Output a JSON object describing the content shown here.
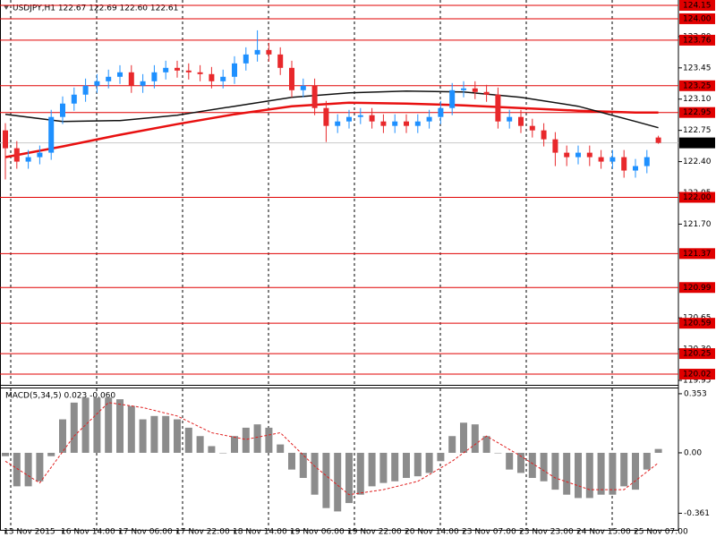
{
  "chart_data": [
    {
      "type": "candlestick",
      "title": "USDJPY,H1  122.67 122.69 122.60 122.61",
      "categories": [
        "13 Nov 2015",
        null,
        null,
        null,
        null,
        "16 Nov 14:00",
        null,
        null,
        null,
        null,
        "17 Nov 06:00",
        null,
        null,
        null,
        null,
        "17 Nov 22:00",
        null,
        null,
        null,
        null,
        "18 Nov 14:00",
        null,
        null,
        null,
        null,
        "19 Nov 06:00",
        null,
        null,
        null,
        null,
        "19 Nov 22:00",
        null,
        null,
        null,
        null,
        "20 Nov 14:00",
        null,
        null,
        null,
        null,
        "23 Nov 07:00",
        null,
        null,
        null,
        null,
        "23 Nov 23:00",
        null,
        null,
        null,
        null,
        "24 Nov 15:00",
        null,
        null,
        null,
        null,
        "25 Nov 07:00",
        null,
        null
      ],
      "open": [
        122.75,
        122.55,
        122.4,
        122.45,
        122.5,
        122.9,
        123.05,
        123.15,
        123.25,
        123.3,
        123.35,
        123.4,
        123.25,
        123.3,
        123.4,
        123.45,
        123.42,
        123.4,
        123.38,
        123.3,
        123.35,
        123.5,
        123.6,
        123.65,
        123.6,
        123.45,
        123.2,
        123.25,
        123.0,
        122.8,
        122.85,
        122.9,
        122.92,
        122.85,
        122.8,
        122.85,
        122.8,
        122.85,
        122.9,
        123.0,
        123.2,
        123.22,
        123.18,
        123.15,
        122.85,
        122.9,
        122.8,
        122.75,
        122.65,
        122.5,
        122.45,
        122.5,
        122.45,
        122.4,
        122.45,
        122.3,
        122.35,
        122.67
      ],
      "high": [
        122.83,
        122.63,
        122.53,
        122.58,
        122.98,
        123.13,
        123.23,
        123.33,
        123.38,
        123.43,
        123.48,
        123.48,
        123.38,
        123.48,
        123.53,
        123.53,
        123.5,
        123.48,
        123.46,
        123.43,
        123.58,
        123.68,
        123.87,
        123.73,
        123.68,
        123.53,
        123.33,
        123.33,
        123.08,
        122.93,
        122.98,
        123.0,
        123.0,
        122.93,
        122.93,
        122.93,
        122.93,
        122.98,
        123.08,
        123.28,
        123.3,
        123.3,
        123.26,
        123.23,
        122.98,
        122.98,
        122.88,
        122.83,
        122.73,
        122.58,
        122.58,
        122.58,
        122.53,
        122.53,
        122.53,
        122.43,
        122.53,
        122.69
      ],
      "low": [
        122.2,
        122.32,
        122.32,
        122.37,
        122.42,
        122.82,
        122.97,
        123.07,
        123.17,
        123.22,
        123.27,
        123.17,
        123.17,
        123.22,
        123.32,
        123.34,
        123.32,
        123.3,
        123.22,
        123.22,
        123.27,
        123.42,
        123.52,
        123.52,
        123.37,
        123.12,
        123.12,
        122.92,
        122.62,
        122.72,
        122.77,
        122.82,
        122.77,
        122.72,
        122.72,
        122.72,
        122.72,
        122.77,
        122.82,
        122.92,
        123.12,
        123.1,
        123.07,
        122.77,
        122.77,
        122.72,
        122.67,
        122.57,
        122.35,
        122.35,
        122.37,
        122.35,
        122.32,
        122.32,
        122.22,
        122.22,
        122.27,
        122.6
      ],
      "close": [
        122.55,
        122.4,
        122.45,
        122.5,
        122.9,
        123.05,
        123.15,
        123.25,
        123.3,
        123.35,
        123.4,
        123.25,
        123.3,
        123.4,
        123.45,
        123.42,
        123.4,
        123.38,
        123.3,
        123.35,
        123.5,
        123.6,
        123.65,
        123.6,
        123.45,
        123.2,
        123.25,
        123.0,
        122.8,
        122.85,
        122.9,
        122.92,
        122.85,
        122.8,
        122.85,
        122.8,
        122.85,
        122.9,
        123.0,
        123.2,
        123.22,
        123.18,
        123.15,
        122.85,
        122.9,
        122.8,
        122.75,
        122.65,
        122.5,
        122.45,
        122.5,
        122.45,
        122.4,
        122.45,
        122.3,
        122.35,
        122.45,
        122.61
      ],
      "up_color": "#1e90ff",
      "down_color": "#e8282b",
      "moving_averages": [
        {
          "color": "#e81010",
          "x": [
            0,
            5,
            10,
            15,
            20,
            25,
            30,
            35,
            40,
            45,
            50,
            55,
            57
          ],
          "values": [
            122.45,
            122.57,
            122.7,
            122.82,
            122.93,
            123.02,
            123.06,
            123.05,
            123.03,
            123.0,
            122.97,
            122.95,
            122.95
          ]
        },
        {
          "color": "#111111",
          "x": [
            0,
            5,
            10,
            15,
            20,
            25,
            30,
            35,
            40,
            45,
            50,
            55,
            57
          ],
          "values": [
            122.93,
            122.85,
            122.86,
            122.92,
            123.02,
            123.12,
            123.17,
            123.19,
            123.18,
            123.12,
            123.02,
            122.85,
            122.78
          ]
        }
      ],
      "levels": [
        124.15,
        {
          "value": 124.0,
          "label": "124.00"
        },
        123.76,
        123.25,
        122.95,
        {
          "value": 122.0,
          "label": "122.00"
        },
        121.37,
        120.99,
        120.59,
        120.25,
        120.02
      ],
      "level_color": "#e00000",
      "current_price": 122.61,
      "ylim": [
        119.9,
        124.21
      ],
      "yticks": [
        {
          "value": 123.8,
          "label": "123.80"
        },
        123.45,
        {
          "value": 123.1,
          "label": "123.10"
        },
        122.75,
        {
          "value": 122.4,
          "label": "122.40"
        },
        122.05,
        {
          "value": 121.7,
          "label": "121.70"
        },
        120.65,
        {
          "value": 120.3,
          "label": "120.30"
        },
        119.95
      ]
    },
    {
      "type": "macd",
      "title": "MACD(5,34,5) 0.023 -0.060",
      "values": [
        -0.02,
        -0.2,
        -0.2,
        -0.17,
        -0.02,
        0.2,
        0.3,
        0.33,
        0.33,
        0.33,
        0.32,
        0.28,
        0.2,
        0.22,
        0.22,
        0.2,
        0.15,
        0.1,
        0.04,
        0.0,
        0.1,
        0.15,
        0.17,
        0.15,
        0.05,
        -0.1,
        -0.15,
        -0.25,
        -0.33,
        -0.35,
        -0.3,
        -0.25,
        -0.2,
        -0.18,
        -0.17,
        -0.15,
        -0.14,
        -0.12,
        -0.05,
        0.1,
        0.18,
        0.17,
        0.1,
        0.0,
        -0.1,
        -0.12,
        -0.15,
        -0.17,
        -0.22,
        -0.25,
        -0.27,
        -0.27,
        -0.25,
        -0.25,
        -0.2,
        -0.22,
        -0.1,
        0.023
      ],
      "color": "#8c8c8c",
      "signal": {
        "color": "#e02020",
        "x": [
          0,
          3,
          6,
          9,
          12,
          15,
          18,
          21,
          24,
          27,
          30,
          33,
          36,
          39,
          42,
          45,
          48,
          51,
          54,
          57
        ],
        "values": [
          -0.05,
          -0.18,
          0.1,
          0.3,
          0.27,
          0.22,
          0.12,
          0.08,
          0.12,
          -0.08,
          -0.25,
          -0.22,
          -0.17,
          -0.05,
          0.1,
          -0.02,
          -0.15,
          -0.22,
          -0.22,
          -0.06
        ]
      },
      "ylim": [
        -0.46,
        0.39
      ],
      "yticks": [
        0.353,
        {
          "value": 0,
          "label": "0.00"
        },
        -0.361
      ]
    }
  ]
}
